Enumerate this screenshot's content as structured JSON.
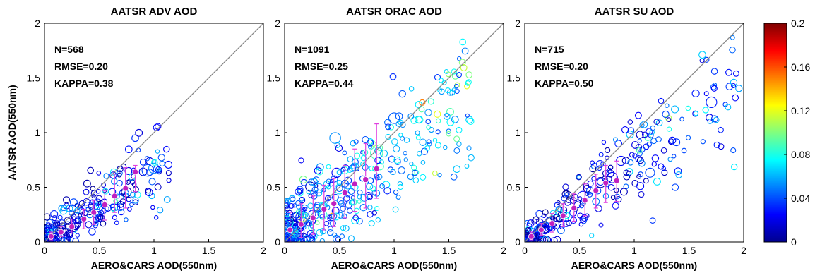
{
  "figure": {
    "ylabel": "AATSR AOD(550nm)",
    "colorbar": {
      "min": 0,
      "max": 0.2,
      "ticks": [
        "0",
        "0.04",
        "0.08",
        "0.12",
        "0.16",
        "0.2"
      ],
      "colormap": "jet"
    }
  },
  "chart_data": [
    {
      "type": "scatter",
      "title": "AATSR ADV AOD",
      "xlabel": "AERO&CARS AOD(550nm)",
      "xlim": [
        0,
        2
      ],
      "ylim": [
        0,
        2
      ],
      "xticks": [
        "0",
        "0.5",
        "1",
        "1.5",
        "2"
      ],
      "yticks": [
        "0",
        "0.5",
        "1",
        "1.5",
        "2"
      ],
      "one_to_one_line": true,
      "stats": {
        "n": "N=568",
        "rmse": "RMSE=0.20",
        "kappa": "KAPPA=0.38"
      },
      "binned_means": [
        {
          "x": 0.06,
          "y": 0.05,
          "lo": 0.02,
          "hi": 0.09
        },
        {
          "x": 0.15,
          "y": 0.09,
          "lo": 0.05,
          "hi": 0.14
        },
        {
          "x": 0.25,
          "y": 0.14,
          "lo": 0.08,
          "hi": 0.21
        },
        {
          "x": 0.36,
          "y": 0.21,
          "lo": 0.12,
          "hi": 0.3
        },
        {
          "x": 0.45,
          "y": 0.27,
          "lo": 0.16,
          "hi": 0.38
        },
        {
          "x": 0.55,
          "y": 0.34,
          "lo": 0.2,
          "hi": 0.47
        },
        {
          "x": 0.64,
          "y": 0.42,
          "lo": 0.27,
          "hi": 0.62
        },
        {
          "x": 0.74,
          "y": 0.49,
          "lo": 0.31,
          "hi": 0.68
        },
        {
          "x": 0.83,
          "y": 0.64,
          "lo": 0.46,
          "hi": 0.7
        }
      ]
    },
    {
      "type": "scatter",
      "title": "AATSR ORAC AOD",
      "xlabel": "AERO&CARS AOD(550nm)",
      "xlim": [
        0,
        2
      ],
      "ylim": [
        0,
        2
      ],
      "xticks": [
        "0",
        "0.5",
        "1",
        "1.5",
        "2"
      ],
      "yticks": [
        "0",
        "0.5",
        "1",
        "1.5",
        "2"
      ],
      "one_to_one_line": true,
      "stats": {
        "n": "N=1091",
        "rmse": "RMSE=0.25",
        "kappa": "KAPPA=0.44"
      },
      "binned_means": [
        {
          "x": 0.05,
          "y": 0.11,
          "lo": 0.0,
          "hi": 0.27
        },
        {
          "x": 0.15,
          "y": 0.16,
          "lo": 0.04,
          "hi": 0.35
        },
        {
          "x": 0.26,
          "y": 0.22,
          "lo": 0.07,
          "hi": 0.42
        },
        {
          "x": 0.36,
          "y": 0.3,
          "lo": 0.11,
          "hi": 0.52
        },
        {
          "x": 0.45,
          "y": 0.35,
          "lo": 0.14,
          "hi": 0.58
        },
        {
          "x": 0.55,
          "y": 0.45,
          "lo": 0.22,
          "hi": 0.7
        },
        {
          "x": 0.64,
          "y": 0.53,
          "lo": 0.28,
          "hi": 0.85
        },
        {
          "x": 0.74,
          "y": 0.57,
          "lo": 0.31,
          "hi": 0.9
        },
        {
          "x": 0.84,
          "y": 0.67,
          "lo": 0.4,
          "hi": 1.08
        }
      ]
    },
    {
      "type": "scatter",
      "title": "AATSR SU AOD",
      "xlabel": "AERO&CARS AOD(550nm)",
      "xlim": [
        0,
        2
      ],
      "ylim": [
        0,
        2
      ],
      "xticks": [
        "0",
        "0.5",
        "1",
        "1.5",
        "2"
      ],
      "yticks": [
        "0",
        "0.5",
        "1",
        "1.5",
        "2"
      ],
      "one_to_one_line": true,
      "stats": {
        "n": "N=715",
        "rmse": "RMSE=0.20",
        "kappa": "KAPPA=0.50"
      },
      "binned_means": [
        {
          "x": 0.06,
          "y": 0.05,
          "lo": 0.02,
          "hi": 0.09
        },
        {
          "x": 0.15,
          "y": 0.11,
          "lo": 0.06,
          "hi": 0.17
        },
        {
          "x": 0.25,
          "y": 0.17,
          "lo": 0.09,
          "hi": 0.26
        },
        {
          "x": 0.35,
          "y": 0.24,
          "lo": 0.14,
          "hi": 0.35
        },
        {
          "x": 0.45,
          "y": 0.31,
          "lo": 0.19,
          "hi": 0.44
        },
        {
          "x": 0.55,
          "y": 0.38,
          "lo": 0.24,
          "hi": 0.53
        },
        {
          "x": 0.65,
          "y": 0.47,
          "lo": 0.31,
          "hi": 0.62
        },
        {
          "x": 0.74,
          "y": 0.54,
          "lo": 0.36,
          "hi": 0.7
        },
        {
          "x": 0.84,
          "y": 0.56,
          "lo": 0.37,
          "hi": 0.74
        }
      ]
    }
  ]
}
